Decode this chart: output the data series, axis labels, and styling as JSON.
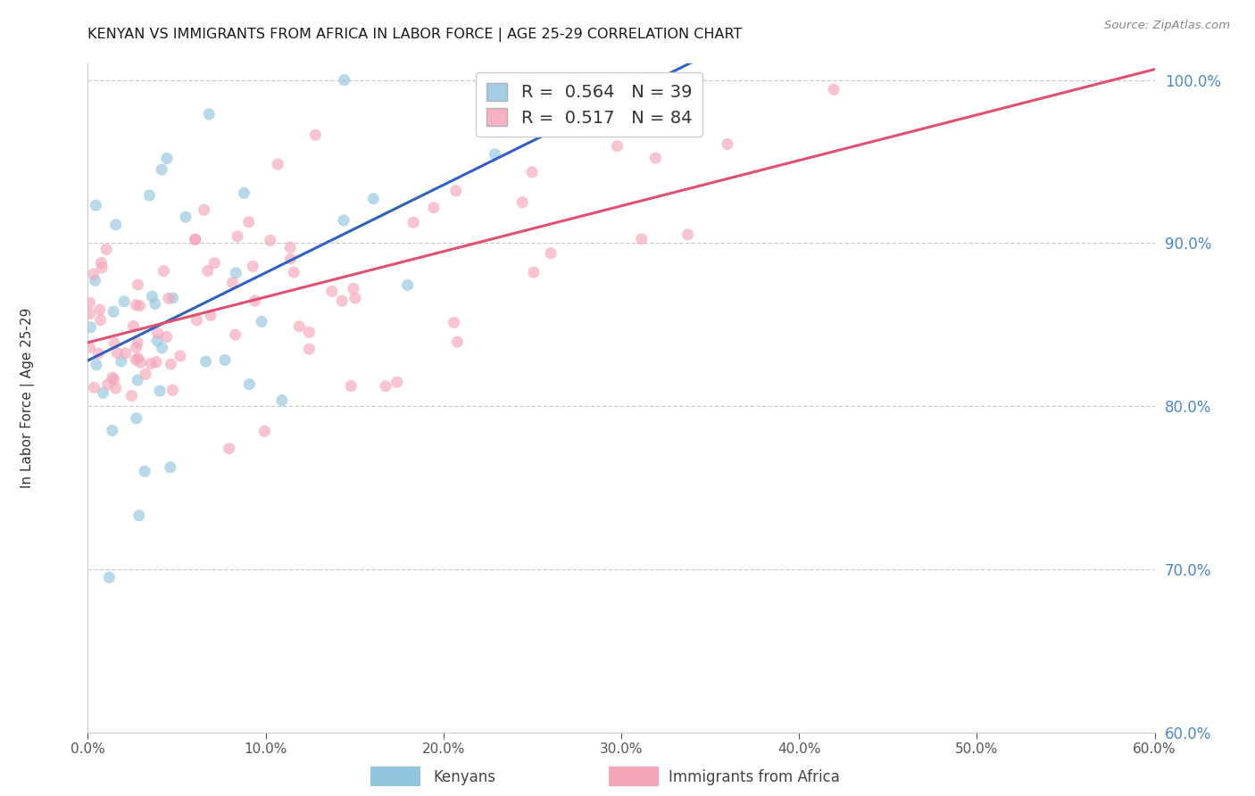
{
  "title": "KENYAN VS IMMIGRANTS FROM AFRICA IN LABOR FORCE | AGE 25-29 CORRELATION CHART",
  "source": "Source: ZipAtlas.com",
  "ylabel": "In Labor Force | Age 25-29",
  "xlim": [
    0.0,
    0.6
  ],
  "ylim": [
    0.6,
    1.01
  ],
  "yticks": [
    0.6,
    0.7,
    0.8,
    0.9,
    1.0
  ],
  "xticks": [
    0.0,
    0.1,
    0.2,
    0.3,
    0.4,
    0.5,
    0.6
  ],
  "blue_R": 0.564,
  "blue_N": 39,
  "pink_R": 0.517,
  "pink_N": 84,
  "blue_color": "#92c5de",
  "pink_color": "#f4a5b8",
  "blue_line_color": "#3060c0",
  "pink_line_color": "#e05070",
  "right_tick_color": "#4d88cc",
  "background_color": "#ffffff"
}
